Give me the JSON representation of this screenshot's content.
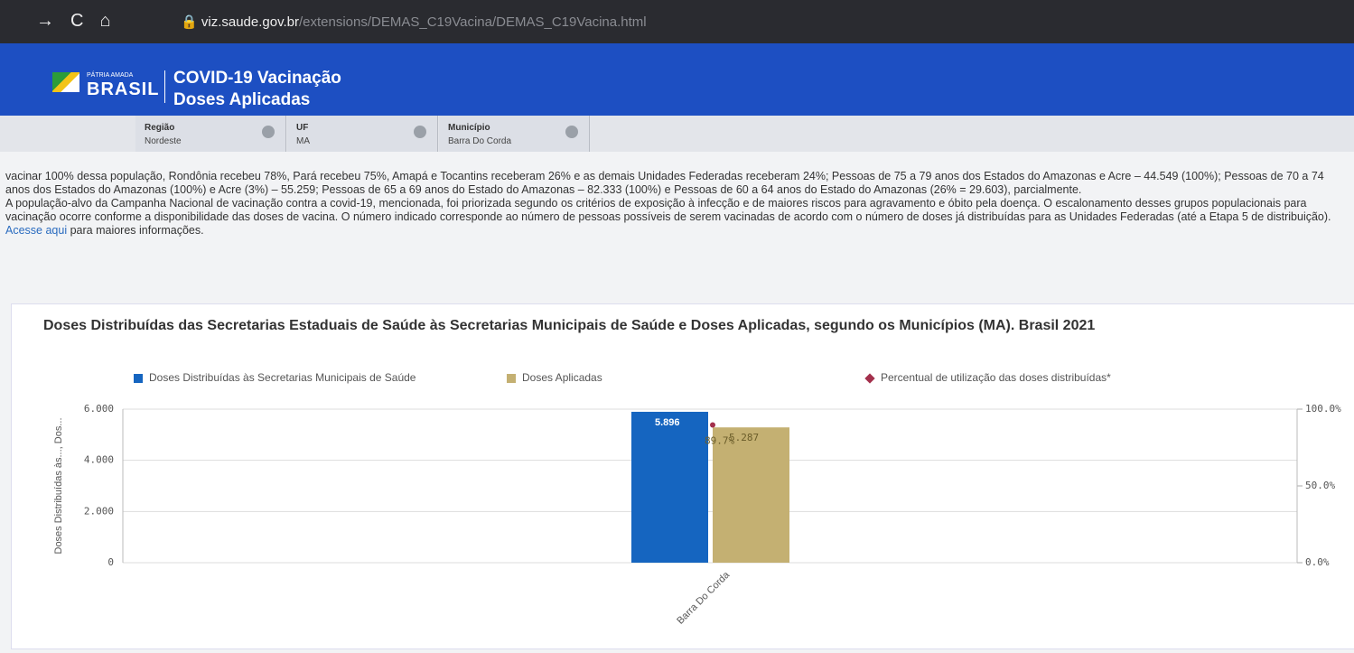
{
  "browser": {
    "url_host": "viz.saude.gov.br",
    "url_path": "/extensions/DEMAS_C19Vacina/DEMAS_C19Vacina.html"
  },
  "header": {
    "logo_small": "PÁTRIA AMADA",
    "logo_text": "BRASIL",
    "title": "COVID-19 Vacinação",
    "subtitle": "Doses Aplicadas"
  },
  "filters": [
    {
      "label": "Região",
      "value": "Nordeste"
    },
    {
      "label": "UF",
      "value": "MA"
    },
    {
      "label": "Município",
      "value": "Barra Do Corda"
    }
  ],
  "text": {
    "paragraphs": [
      "vacinar 100% dessa população, Rondônia recebeu 78%, Pará recebeu 75%, Amapá e Tocantins receberam 26% e as demais Unidades Federadas receberam 24%; Pessoas de 75 a 79 anos dos Estados do Amazonas e Acre – 44.549 (100%); Pessoas de 70 a 74 anos dos Estados do Amazonas (100%) e Acre (3%) – 55.259; Pessoas de 65 a 69 anos do Estado do Amazonas – 82.333 (100%) e Pessoas de 60 a 64 anos do Estado do Amazonas (26% = 29.603), parcialmente.",
      "A população-alvo da Campanha Nacional de vacinação contra a covid-19, mencionada, foi priorizada segundo os critérios de exposição à infecção e de maiores riscos para agravamento e óbito pela doença. O escalonamento desses grupos populacionais para vacinação ocorre conforme a disponibilidade das doses de vacina. O número indicado corresponde ao número de pessoas possíveis de serem vacinadas de acordo com o número de doses já distribuídas para as Unidades Federadas (até a Etapa 5 de distribuição)."
    ],
    "link": "Acesse aqui",
    "link_rest": "para maiores informações."
  },
  "chart_data": {
    "type": "bar",
    "title": "Doses Distribuídas das Secretarias Estaduais de Saúde às Secretarias Municipais de Saúde e Doses Aplicadas, segundo os Municípios (MA). Brasil 2021",
    "y_label": "Doses Distribuídas às..., Dos...",
    "categories": [
      "Barra Do Corda"
    ],
    "series": [
      {
        "name": "Doses Distribuídas às Secretarias Municipais de Saúde",
        "color": "#1565c0",
        "values": [
          5896
        ],
        "value_labels": [
          "5.896"
        ]
      },
      {
        "name": "Doses Aplicadas",
        "color": "#c4b072",
        "values": [
          5287
        ],
        "value_labels": [
          "5.287"
        ]
      },
      {
        "name": "Percentual de utilização das doses distribuídas*",
        "color": "#a3304c",
        "type": "line",
        "axis": "y2",
        "values": [
          89.7
        ],
        "value_labels": [
          "89.7%"
        ]
      }
    ],
    "ylim": [
      0,
      6000
    ],
    "yticks": [
      0,
      {
        "value": 2000,
        "label": "2.000"
      },
      {
        "value": 4000,
        "label": "4.000"
      },
      {
        "value": 6000,
        "label": "6.000"
      }
    ],
    "y2lim": [
      0,
      100
    ],
    "y2ticks": [
      {
        "value": 0,
        "label": "0.0%"
      },
      {
        "value": 50,
        "label": "50.0%"
      },
      {
        "value": 100,
        "label": "100.0%"
      }
    ],
    "grid": true
  }
}
